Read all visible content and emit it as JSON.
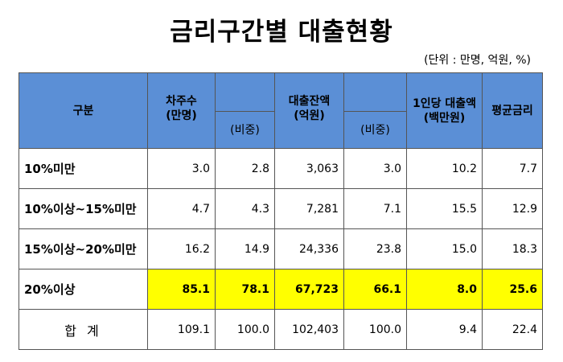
{
  "title": "금리구간별 대출현황",
  "unit_note": "(단위 : 만명, 억원, %)",
  "headers": {
    "category": "구분",
    "borrowers": "차주수\n(만명)",
    "borrowers_share": "(비중)",
    "loan_balance": "대출잔액\n(억원)",
    "loan_share": "(비중)",
    "per_capita": "1인당 대출액\n(백만원)",
    "avg_rate": "평균금리"
  },
  "rows": [
    {
      "label": "10%미만",
      "borrowers": "3.0",
      "borrowers_share": "2.8",
      "loan_balance": "3,063",
      "loan_share": "3.0",
      "per_capita": "10.2",
      "avg_rate": "7.7"
    },
    {
      "label": "10%이상~15%미만",
      "borrowers": "4.7",
      "borrowers_share": "4.3",
      "loan_balance": "7,281",
      "loan_share": "7.1",
      "per_capita": "15.5",
      "avg_rate": "12.9"
    },
    {
      "label": "15%이상~20%미만",
      "borrowers": "16.2",
      "borrowers_share": "14.9",
      "loan_balance": "24,336",
      "loan_share": "23.8",
      "per_capita": "15.0",
      "avg_rate": "18.3"
    },
    {
      "label": "20%이상",
      "borrowers": "85.1",
      "borrowers_share": "78.1",
      "loan_balance": "67,723",
      "loan_share": "66.1",
      "per_capita": "8.0",
      "avg_rate": "25.6"
    },
    {
      "label": "합 계",
      "borrowers": "109.1",
      "borrowers_share": "100.0",
      "loan_balance": "102,403",
      "loan_share": "100.0",
      "per_capita": "9.4",
      "avg_rate": "22.4"
    }
  ],
  "colors": {
    "header_bg": "#5b8fd6",
    "highlight_bg": "#ffff00"
  }
}
